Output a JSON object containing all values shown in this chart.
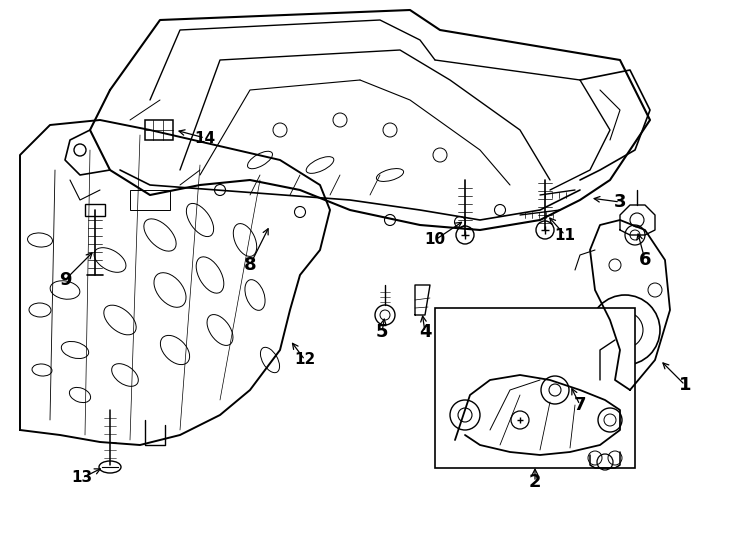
{
  "bg_color": "#ffffff",
  "line_color": "#000000",
  "figsize": [
    7.34,
    5.4
  ],
  "dpi": 100,
  "callouts": {
    "1": [
      6.85,
      1.55,
      6.6,
      1.8
    ],
    "2": [
      5.35,
      0.58,
      5.35,
      0.75
    ],
    "3": [
      6.2,
      3.38,
      5.9,
      3.42
    ],
    "4": [
      4.25,
      2.08,
      4.22,
      2.28
    ],
    "5": [
      3.82,
      2.08,
      3.85,
      2.25
    ],
    "6": [
      6.45,
      2.8,
      6.37,
      3.1
    ],
    "7": [
      5.8,
      1.35,
      5.7,
      1.55
    ],
    "8": [
      2.5,
      2.75,
      2.7,
      3.15
    ],
    "9": [
      0.65,
      2.6,
      0.95,
      2.9
    ],
    "10": [
      4.35,
      3.0,
      4.65,
      3.2
    ],
    "11": [
      5.65,
      3.05,
      5.47,
      3.25
    ],
    "12": [
      3.05,
      1.8,
      2.9,
      2.0
    ],
    "13": [
      0.82,
      0.62,
      1.04,
      0.73
    ],
    "14": [
      2.05,
      4.02,
      1.75,
      4.1
    ]
  }
}
